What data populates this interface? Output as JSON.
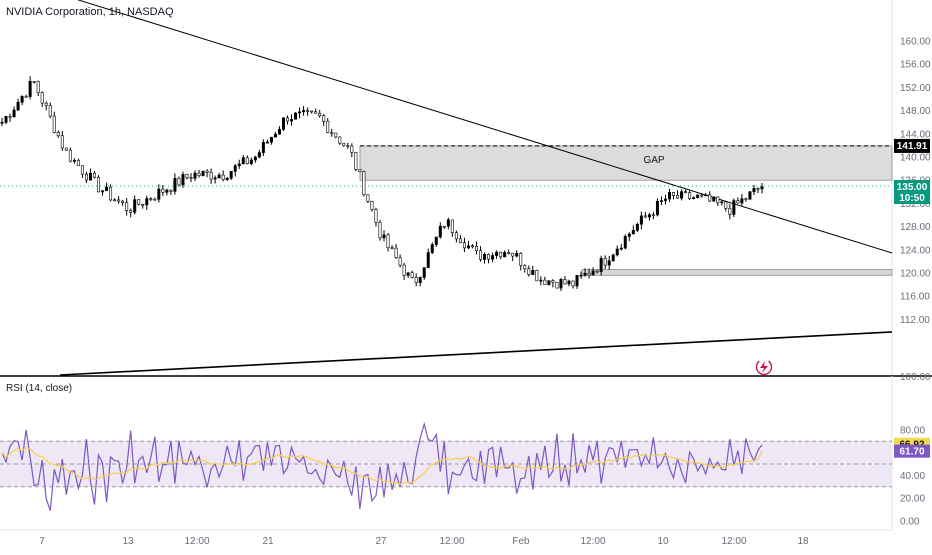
{
  "header": {
    "symbol_title": "NVIDIA Corporation, 1h, NASDAQ"
  },
  "price_axis": {
    "ticks": [
      "160.00",
      "156.00",
      "152.00",
      "148.00",
      "144.00",
      "140.00",
      "136.00",
      "132.00",
      "128.00",
      "124.00",
      "120.00",
      "116.00",
      "112.00"
    ]
  },
  "labels": {
    "gap": "GAP",
    "dashed_level": "141.91",
    "last_price": "135.00",
    "countdown": "10:50",
    "rsi_value": "66.92",
    "rsi_ma_value": "61.70",
    "rsi_title": "RSI (14, close)",
    "rsi_pane_top": "100.00"
  },
  "rsi_axis": {
    "ticks": [
      "80.00",
      "60.00",
      "40.00",
      "20.00",
      "0.00"
    ]
  },
  "time_axis": {
    "ticks": [
      "7",
      "13",
      "12:00",
      "21",
      "27",
      "12:00",
      "Feb",
      "12:00",
      "10",
      "12:00",
      "18"
    ]
  },
  "colors": {
    "up": "#26a69a",
    "down": "#ef5350",
    "candle": "#000000",
    "rsi": "#7e57c2",
    "rsi_ma": "#f5d04c",
    "rsi_band": "#ede7f6",
    "label_dark": "#000000",
    "label_green": "#089981",
    "label_rsi": "#7e57c2",
    "label_rsi_ma": "#f2d94e",
    "gap_box": "#d6d6d6"
  },
  "chart_data": {
    "type": "candlestick",
    "symbol": "NVIDIA Corporation",
    "interval": "1h",
    "exchange": "NASDAQ",
    "y_range": [
      110,
      161
    ],
    "anchors": [
      {
        "x": "7",
        "close": 146
      },
      {
        "x": "~9",
        "close": 153
      },
      {
        "x": "~10",
        "close": 141
      },
      {
        "x": "~12",
        "close": 135
      },
      {
        "x": "13",
        "close": 131
      },
      {
        "x": "~15",
        "close": 134
      },
      {
        "x": "~17",
        "close": 137
      },
      {
        "x": "~19",
        "close": 137
      },
      {
        "x": "21",
        "close": 140
      },
      {
        "x": "~23",
        "close": 147
      },
      {
        "x": "~25",
        "close": 147
      },
      {
        "x": "~26",
        "close": 141
      },
      {
        "x": "27",
        "close": 126
      },
      {
        "x": "~28",
        "close": 118
      },
      {
        "x": "~29",
        "close": 129
      },
      {
        "x": "~30",
        "close": 123
      },
      {
        "x": "~31",
        "close": 124
      },
      {
        "x": "Feb",
        "close": 119
      },
      {
        "x": "~Feb 3",
        "close": 118
      },
      {
        "x": "~Feb 5",
        "close": 122
      },
      {
        "x": "~Feb 7",
        "close": 128
      },
      {
        "x": "10",
        "close": 133
      },
      {
        "x": "~11",
        "close": 133
      },
      {
        "x": "~12",
        "close": 131
      },
      {
        "x": "~13",
        "close": 135
      }
    ],
    "last_price": 135.0,
    "annotations": [
      {
        "type": "rectangle",
        "label": "GAP",
        "from": 136,
        "to": 141.91
      },
      {
        "type": "horizontal_line",
        "style": "dashed",
        "value": 141.91
      },
      {
        "type": "rectangle",
        "from": 119.6,
        "to": 120.6
      },
      {
        "type": "trendline",
        "label": "descending resistance"
      },
      {
        "type": "trendline",
        "label": "rising support"
      }
    ],
    "indicator": {
      "name": "RSI",
      "params": "14, close",
      "value": 66.92,
      "ma_value": 61.7,
      "levels": [
        70,
        50,
        30
      ],
      "y_range": [
        0,
        100
      ]
    },
    "time_ticks": [
      "7",
      "13",
      "12:00",
      "21",
      "27",
      "12:00",
      "Feb",
      "12:00",
      "10",
      "12:00",
      "18"
    ]
  }
}
